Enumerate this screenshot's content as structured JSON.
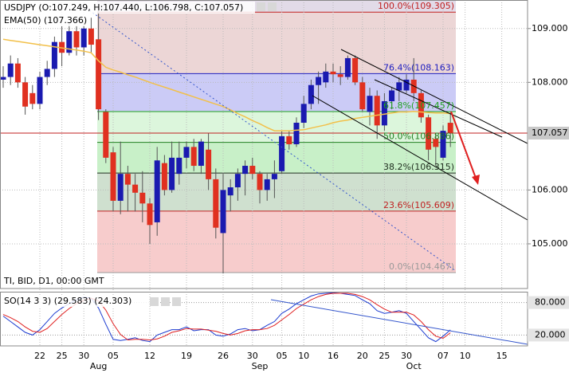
{
  "chart_data": [
    {
      "type": "candlestick",
      "title": "USDJPY (O:107.249, H:107.440, L:106.798, C:107.057)",
      "subtitle": "TI, BID, D1, 00:00 GMT",
      "categories": [
        null,
        null,
        null,
        null,
        null,
        "22",
        null,
        null,
        "25",
        null,
        null,
        "30",
        null,
        null,
        null,
        "05",
        null,
        null,
        null,
        null,
        "12",
        null,
        null,
        null,
        null,
        "19",
        null,
        null,
        null,
        null,
        "26",
        null,
        null,
        null,
        "30",
        null,
        null,
        null,
        "05",
        null,
        null,
        "10",
        null,
        null,
        null,
        "16",
        null,
        null,
        null,
        "20",
        null,
        null,
        "25",
        null,
        null,
        "30",
        null,
        null,
        null,
        null,
        "07",
        null,
        null,
        "10",
        null,
        null,
        null,
        null,
        "15",
        null,
        null,
        null
      ],
      "months": [
        null,
        null,
        null,
        null,
        null,
        null,
        null,
        null,
        null,
        null,
        null,
        null,
        null,
        "Aug",
        null,
        null,
        null,
        null,
        null,
        null,
        null,
        null,
        null,
        null,
        null,
        null,
        null,
        null,
        null,
        null,
        null,
        null,
        null,
        null,
        null,
        "Sep",
        null,
        null,
        null,
        null,
        null,
        null,
        null,
        null,
        null,
        null,
        null,
        null,
        null,
        null,
        null,
        null,
        null,
        null,
        null,
        null,
        "Oct",
        null,
        null,
        null,
        null,
        null,
        null,
        null,
        null,
        null,
        null,
        null,
        null,
        null,
        null,
        null
      ],
      "open": [
        108.05,
        108.1,
        108.35,
        108.0,
        107.8,
        107.6,
        108.1,
        108.25,
        108.75,
        108.55,
        108.95,
        108.65,
        109.0,
        108.8,
        107.45,
        106.7,
        105.8,
        106.3,
        106.1,
        105.95,
        105.75,
        105.4,
        106.5,
        106.0,
        106.3,
        106.6,
        106.8,
        106.45,
        106.75,
        106.2,
        105.2,
        105.9,
        106.05,
        106.3,
        106.45,
        106.3,
        106.0,
        106.2,
        106.35,
        107.0,
        106.85,
        107.25,
        107.6,
        107.95,
        108.0,
        108.2,
        108.15,
        108.1,
        108.45,
        108.0,
        107.45,
        107.75,
        107.2,
        107.65,
        107.85,
        107.85,
        108.05,
        107.8,
        107.35,
        106.95,
        106.6,
        107.249,
        null,
        null,
        null,
        null,
        null,
        null,
        null,
        null,
        null,
        null
      ],
      "high": [
        108.3,
        108.5,
        108.45,
        108.1,
        107.95,
        108.2,
        108.4,
        108.85,
        109.05,
        109.1,
        109.05,
        109.15,
        109.2,
        109.4,
        107.5,
        106.8,
        106.9,
        106.45,
        106.3,
        106.35,
        105.85,
        106.8,
        106.65,
        106.9,
        106.9,
        106.9,
        106.95,
        106.95,
        107.05,
        106.4,
        106.3,
        106.2,
        106.4,
        106.55,
        106.6,
        106.35,
        106.3,
        106.55,
        107.1,
        107.1,
        107.35,
        107.75,
        108.05,
        108.2,
        108.35,
        108.35,
        108.3,
        108.5,
        108.5,
        108.1,
        107.9,
        107.85,
        107.8,
        107.9,
        108.1,
        108.15,
        108.45,
        107.85,
        107.4,
        107.05,
        107.2,
        107.44,
        null,
        null,
        null,
        null,
        null,
        null,
        null,
        null,
        null,
        null
      ],
      "low": [
        107.9,
        107.95,
        107.9,
        107.4,
        107.5,
        107.5,
        107.95,
        108.1,
        108.3,
        108.5,
        108.5,
        108.5,
        108.55,
        107.3,
        106.5,
        105.6,
        105.55,
        105.6,
        105.6,
        105.4,
        105.0,
        105.15,
        105.9,
        105.95,
        106.1,
        106.4,
        106.35,
        106.3,
        106.0,
        105.1,
        104.45,
        105.6,
        105.8,
        105.9,
        106.2,
        105.75,
        105.8,
        105.85,
        106.3,
        106.75,
        106.8,
        107.15,
        107.5,
        107.6,
        107.9,
        108.0,
        107.95,
        108.05,
        107.95,
        107.45,
        107.2,
        106.95,
        107.1,
        107.5,
        107.65,
        107.8,
        107.65,
        107.25,
        106.55,
        106.45,
        106.55,
        106.798,
        null,
        null,
        null,
        null,
        null,
        null,
        null,
        null,
        null,
        null
      ],
      "close": [
        108.1,
        108.35,
        108.0,
        107.55,
        107.6,
        108.1,
        108.25,
        108.75,
        108.55,
        108.95,
        108.65,
        109.0,
        108.7,
        107.5,
        106.6,
        105.8,
        106.3,
        106.1,
        105.95,
        105.75,
        105.35,
        106.55,
        106.0,
        106.6,
        106.6,
        106.8,
        106.45,
        106.9,
        106.2,
        105.3,
        106.0,
        106.05,
        106.3,
        106.45,
        106.3,
        106.0,
        106.2,
        106.3,
        107.0,
        106.85,
        107.25,
        107.6,
        107.95,
        108.1,
        108.2,
        108.15,
        108.1,
        108.45,
        108.0,
        107.5,
        107.75,
        107.2,
        107.65,
        107.85,
        108.0,
        108.05,
        107.8,
        107.35,
        106.75,
        106.8,
        107.1,
        107.057,
        null,
        null,
        null,
        null,
        null,
        null,
        null,
        null,
        null,
        null
      ],
      "up_color": "#1a1ab0",
      "down_color": "#e03020",
      "ema": {
        "label": "EMA(50) (107.366)",
        "color": "#f2c04a",
        "values": [
          108.8,
          108.78,
          108.76,
          108.74,
          108.72,
          108.7,
          108.68,
          108.66,
          108.64,
          108.62,
          108.6,
          108.58,
          108.55,
          108.4,
          108.28,
          108.23,
          108.19,
          108.14,
          108.1,
          108.05,
          108.0,
          107.955,
          107.91,
          107.865,
          107.82,
          107.775,
          107.73,
          107.685,
          107.64,
          107.595,
          107.55,
          107.49,
          107.42,
          107.36,
          107.29,
          107.23,
          107.16,
          107.1,
          107.1,
          107.1,
          107.11,
          107.12,
          107.15,
          107.18,
          107.21,
          107.25,
          107.28,
          107.3,
          107.33,
          107.35,
          107.37,
          107.39,
          107.41,
          107.43,
          107.45,
          107.45,
          107.46,
          107.45,
          107.44,
          107.43,
          107.43,
          107.42,
          null,
          null,
          null,
          null,
          null,
          null,
          null,
          null,
          null,
          null
        ]
      },
      "fib_levels": [
        {
          "label": "100.0%(109.305)",
          "value": 109.305,
          "color": "#c02020",
          "fill": "#ecd6d6"
        },
        {
          "label": "76.4%(108.163)",
          "value": 108.163,
          "color": "#2020c0",
          "fill": "#cbcbf6"
        },
        {
          "label": "61.8%(107.457)",
          "value": 107.457,
          "color": "#20a020",
          "fill": "#dcf6dc"
        },
        {
          "label": "50.0%(106.886)",
          "value": 106.886,
          "color": "#208020",
          "fill": "#c8f0c8"
        },
        {
          "label": "38.2%(106.315)",
          "value": 106.315,
          "color": "#203020",
          "fill": "#cfe0cf"
        },
        {
          "label": "23.6%(105.609)",
          "value": 105.609,
          "color": "#c02020",
          "fill": "#f7cccc"
        },
        {
          "label": "0.0%(104.467)",
          "value": 104.467,
          "color": "#999999",
          "fill": null
        }
      ],
      "current_price": {
        "value": 107.057,
        "label": "107.057"
      },
      "ylim": [
        104.17,
        109.53
      ],
      "yticks": [
        {
          "value": 109,
          "label": "109.000"
        },
        {
          "value": 108,
          "label": "108.000"
        },
        {
          "value": 106,
          "label": "106.000"
        },
        {
          "value": 105,
          "label": "105.000"
        }
      ],
      "grid": true
    },
    {
      "type": "line",
      "title": "SO(14 3 3) (29.583) (24.303)",
      "series": [
        {
          "color": "#1a3ad0",
          "values": [
            55,
            45,
            35,
            25,
            20,
            30,
            45,
            60,
            70,
            78,
            85,
            90,
            88,
            70,
            40,
            12,
            10,
            12,
            15,
            10,
            8,
            20,
            25,
            30,
            30,
            35,
            28,
            30,
            30,
            20,
            18,
            22,
            30,
            32,
            28,
            30,
            38,
            45,
            60,
            68,
            78,
            85,
            92,
            96,
            97,
            98,
            97,
            95,
            93,
            85,
            78,
            65,
            60,
            62,
            65,
            60,
            45,
            30,
            15,
            8,
            18,
            29.583,
            null,
            null,
            null,
            null,
            null,
            null,
            null,
            null,
            null,
            null
          ]
        },
        {
          "color": "#e02020",
          "values": [
            58,
            52,
            45,
            35,
            27,
            25,
            32,
            45,
            58,
            69,
            78,
            84,
            88,
            83,
            66,
            41,
            21,
            11,
            12,
            12,
            11,
            13,
            18,
            25,
            28,
            32,
            31,
            31,
            29,
            27,
            23,
            20,
            23,
            28,
            30,
            30,
            32,
            38,
            48,
            58,
            69,
            77,
            85,
            91,
            95,
            97,
            97,
            97,
            95,
            91,
            85,
            76,
            68,
            62,
            62,
            62,
            57,
            45,
            30,
            18,
            14,
            24.303,
            null,
            null,
            null,
            null,
            null,
            null,
            null,
            null,
            null,
            null
          ]
        }
      ],
      "ylim": [
        0,
        100
      ],
      "yticks": [
        {
          "value": 80,
          "label": "80.000"
        },
        {
          "value": 20,
          "label": "20.000"
        }
      ]
    }
  ]
}
